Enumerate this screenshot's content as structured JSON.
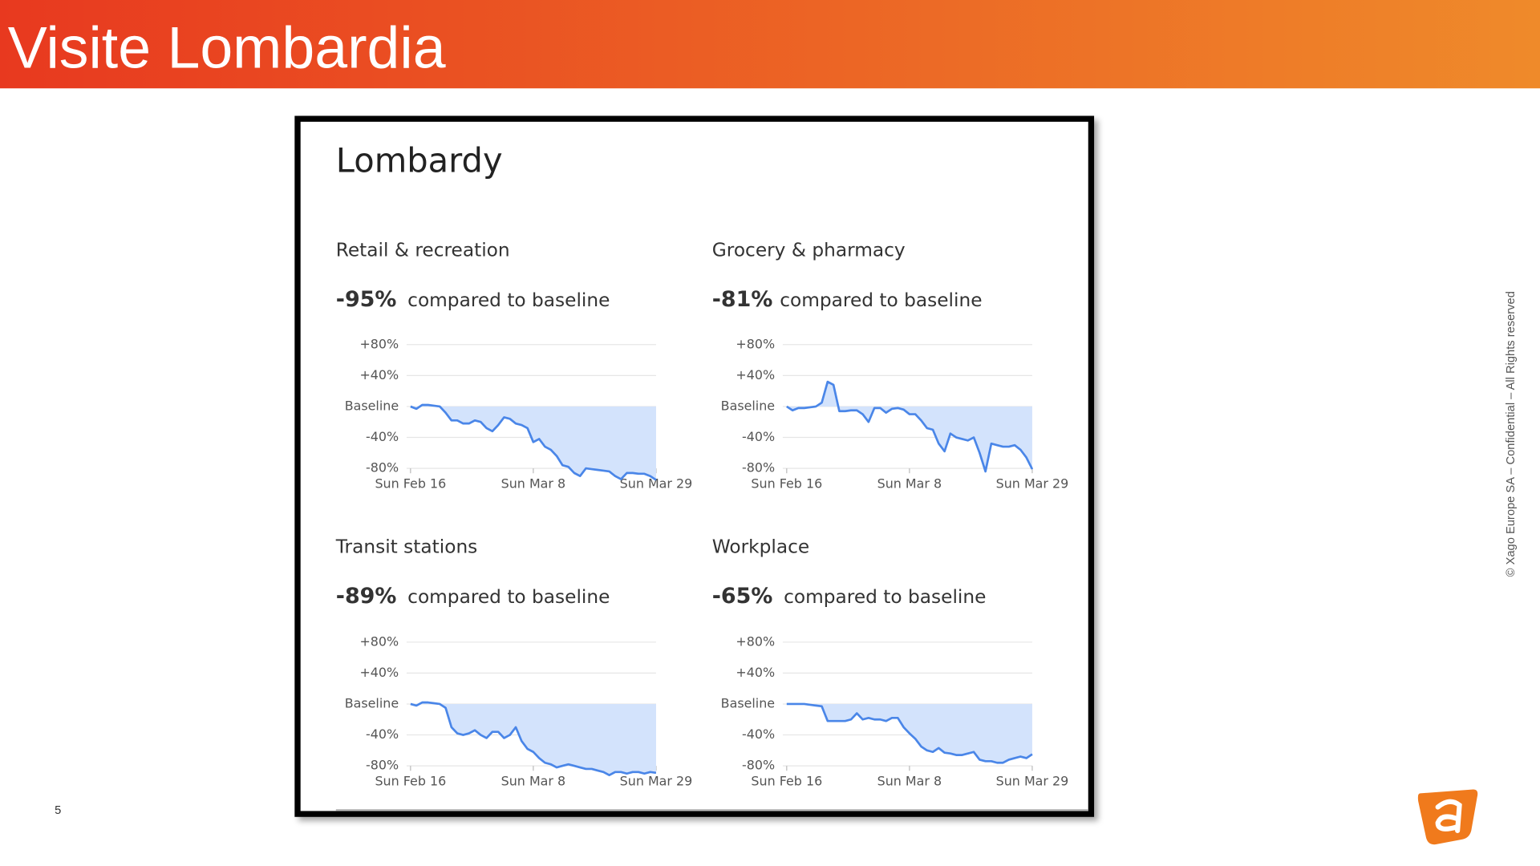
{
  "slide": {
    "title": "Visite Lombardia",
    "page_number": "5",
    "copyright": "© Xago Europe SA – Confidential – All Rights reserved"
  },
  "panel_title": "Lombardy",
  "chart_data": [
    {
      "type": "line",
      "title": "Retail & recreation",
      "headline": "-95%",
      "headline_text": "compared to baseline",
      "categories": [
        "Sun Feb 16",
        null,
        null,
        null,
        null,
        null,
        null,
        null,
        null,
        null,
        null,
        null,
        null,
        null,
        null,
        null,
        null,
        null,
        null,
        null,
        null,
        "Sun Mar 8",
        null,
        null,
        null,
        null,
        null,
        null,
        null,
        null,
        null,
        null,
        null,
        null,
        null,
        null,
        null,
        null,
        null,
        null,
        null,
        null,
        "Sun Mar 29"
      ],
      "values": [
        0,
        -3,
        2,
        2,
        1,
        0,
        -8,
        -18,
        -18,
        -22,
        -22,
        -18,
        -20,
        -28,
        -32,
        -24,
        -14,
        -16,
        -22,
        -24,
        -28,
        -46,
        -42,
        -52,
        -56,
        -64,
        -76,
        -78,
        -86,
        -90,
        -80,
        -81,
        -82,
        -83,
        -84,
        -90,
        -94,
        -86,
        -86,
        -87,
        -87,
        -90,
        -95
      ],
      "color": "#4a86e8",
      "fill_color": "#d3e3fc",
      "ylim": [
        -100,
        80
      ],
      "grid": true,
      "yticks": [
        {
          "value": 80,
          "label": "+80%"
        },
        {
          "value": 40,
          "label": "+40%"
        },
        {
          "value": 0,
          "label": "Baseline"
        },
        {
          "value": -40,
          "label": "-40%"
        },
        {
          "value": -80,
          "label": "-80%"
        }
      ]
    },
    {
      "type": "line",
      "title": "Grocery & pharmacy",
      "headline": "-81%",
      "headline_text": "compared to baseline",
      "categories": [
        "Sun Feb 16",
        null,
        null,
        null,
        null,
        null,
        null,
        null,
        null,
        null,
        null,
        null,
        null,
        null,
        null,
        null,
        null,
        null,
        null,
        null,
        null,
        "Sun Mar 8",
        null,
        null,
        null,
        null,
        null,
        null,
        null,
        null,
        null,
        null,
        null,
        null,
        null,
        null,
        null,
        null,
        null,
        null,
        null,
        null,
        "Sun Mar 29"
      ],
      "values": [
        0,
        -5,
        -2,
        -2,
        -1,
        0,
        5,
        32,
        28,
        -6,
        -6,
        -5,
        -5,
        -10,
        -20,
        -2,
        -2,
        -8,
        -3,
        -2,
        -4,
        -10,
        -10,
        -18,
        -28,
        -30,
        -48,
        -58,
        -35,
        -40,
        -42,
        -44,
        -40,
        -60,
        -84,
        -48,
        -50,
        -52,
        -52,
        -50,
        -56,
        -66,
        -81
      ],
      "color": "#4a86e8",
      "fill_color": "#d3e3fc",
      "ylim": [
        -100,
        80
      ],
      "grid": true,
      "yticks": [
        {
          "value": 80,
          "label": "+80%"
        },
        {
          "value": 40,
          "label": "+40%"
        },
        {
          "value": 0,
          "label": "Baseline"
        },
        {
          "value": -40,
          "label": "-40%"
        },
        {
          "value": -80,
          "label": "-80%"
        }
      ]
    },
    {
      "type": "line",
      "title": "Transit stations",
      "headline": "-89%",
      "headline_text": "compared to baseline",
      "categories": [
        "Sun Feb 16",
        null,
        null,
        null,
        null,
        null,
        null,
        null,
        null,
        null,
        null,
        null,
        null,
        null,
        null,
        null,
        null,
        null,
        null,
        null,
        null,
        "Sun Mar 8",
        null,
        null,
        null,
        null,
        null,
        null,
        null,
        null,
        null,
        null,
        null,
        null,
        null,
        null,
        null,
        null,
        null,
        null,
        null,
        null,
        "Sun Mar 29"
      ],
      "values": [
        0,
        -2,
        2,
        2,
        1,
        0,
        -5,
        -30,
        -38,
        -40,
        -38,
        -34,
        -40,
        -44,
        -36,
        -36,
        -44,
        -40,
        -30,
        -48,
        -58,
        -62,
        -70,
        -76,
        -78,
        -82,
        -80,
        -78,
        -80,
        -82,
        -84,
        -84,
        -86,
        -88,
        -92,
        -88,
        -88,
        -90,
        -88,
        -88,
        -90,
        -88,
        -89
      ],
      "color": "#4a86e8",
      "fill_color": "#d3e3fc",
      "ylim": [
        -100,
        80
      ],
      "grid": true,
      "yticks": [
        {
          "value": 80,
          "label": "+80%"
        },
        {
          "value": 40,
          "label": "+40%"
        },
        {
          "value": 0,
          "label": "Baseline"
        },
        {
          "value": -40,
          "label": "-40%"
        },
        {
          "value": -80,
          "label": "-80%"
        }
      ]
    },
    {
      "type": "line",
      "title": "Workplace",
      "headline": "-65%",
      "headline_text": "compared to baseline",
      "categories": [
        "Sun Feb 16",
        null,
        null,
        null,
        null,
        null,
        null,
        null,
        null,
        null,
        null,
        null,
        null,
        null,
        null,
        null,
        null,
        null,
        null,
        null,
        null,
        "Sun Mar 8",
        null,
        null,
        null,
        null,
        null,
        null,
        null,
        null,
        null,
        null,
        null,
        null,
        null,
        null,
        null,
        null,
        null,
        null,
        null,
        null,
        "Sun Mar 29"
      ],
      "values": [
        0,
        0,
        0,
        0,
        -1,
        -2,
        -3,
        -22,
        -22,
        -22,
        -22,
        -20,
        -12,
        -20,
        -18,
        -20,
        -20,
        -22,
        -18,
        -18,
        -30,
        -38,
        -45,
        -55,
        -60,
        -62,
        -57,
        -63,
        -64,
        -66,
        -66,
        -64,
        -62,
        -72,
        -74,
        -74,
        -76,
        -76,
        -72,
        -70,
        -68,
        -70,
        -65
      ],
      "color": "#4a86e8",
      "fill_color": "#d3e3fc",
      "ylim": [
        -100,
        80
      ],
      "grid": true,
      "yticks": [
        {
          "value": 80,
          "label": "+80%"
        },
        {
          "value": 40,
          "label": "+40%"
        },
        {
          "value": 0,
          "label": "Baseline"
        },
        {
          "value": -40,
          "label": "-40%"
        },
        {
          "value": -80,
          "label": "-80%"
        }
      ]
    }
  ]
}
